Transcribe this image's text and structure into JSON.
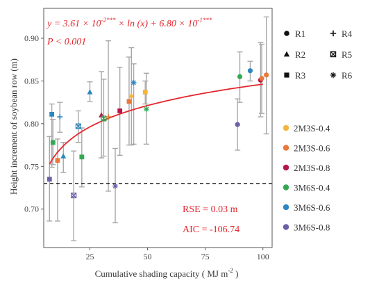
{
  "chart_data": {
    "type": "scatter",
    "xlabel": "Cumulative shading capacity ( MJ  m",
    "xlabel_sup": "-2",
    "xlabel_tail": " )",
    "ylabel": "Height increment of soybean row (m)",
    "xlim": [
      5,
      104
    ],
    "ylim": [
      0.655,
      0.935
    ],
    "xticks": [
      25,
      50,
      75,
      100
    ],
    "yticks": [
      0.7,
      0.75,
      0.8,
      0.85,
      0.9
    ],
    "xtick_labels": [
      "25",
      "50",
      "75",
      "100"
    ],
    "ytick_labels": [
      "0.70",
      "0.75",
      "0.80",
      "0.85",
      "0.90"
    ],
    "grid": false,
    "equation": {
      "lead": "y = 3.61 × 10",
      "exp1": "-2***",
      "mid": " × ln (x) + 6.80 × 10",
      "exp2": "-1***",
      "pvalue": "P < 0.001"
    },
    "fit": {
      "a": 0.0361,
      "b": 0.68,
      "x_from": 7.5,
      "x_to": 100,
      "color": "#e4262d"
    },
    "reference_line": {
      "y": 0.73,
      "style": "dashed",
      "color": "#000000"
    },
    "stats": {
      "rse": "RSE = 0.03 m",
      "aic": "AIC = -106.74"
    },
    "shape_legend": [
      {
        "label": "R1",
        "shape": "circle"
      },
      {
        "label": "R4",
        "shape": "plus"
      },
      {
        "label": "R2",
        "shape": "triangle"
      },
      {
        "label": "R5",
        "shape": "square-x"
      },
      {
        "label": "R3",
        "shape": "square"
      },
      {
        "label": "R6",
        "shape": "asterisk"
      }
    ],
    "color_legend": [
      {
        "label": "2M3S-0.4",
        "color": "#f5b43c"
      },
      {
        "label": "2M3S-0.6",
        "color": "#e8793a"
      },
      {
        "label": "2M3S-0.8",
        "color": "#b5174a"
      },
      {
        "label": "3M6S-0.4",
        "color": "#35a854"
      },
      {
        "label": "3M6S-0.6",
        "color": "#2e86c1"
      },
      {
        "label": "3M6S-0.8",
        "color": "#6c5fa8"
      }
    ],
    "points": [
      {
        "x": 7.5,
        "y": 0.735,
        "lo": 0.686,
        "hi": 0.785,
        "shape": "square",
        "color": "#6c5fa8"
      },
      {
        "x": 8.5,
        "y": 0.811,
        "lo": 0.749,
        "hi": 0.823,
        "shape": "square",
        "color": "#2e86c1"
      },
      {
        "x": 9,
        "y": 0.778,
        "lo": 0.752,
        "hi": 0.805,
        "shape": "square",
        "color": "#35a854"
      },
      {
        "x": 11,
        "y": 0.757,
        "lo": 0.686,
        "hi": 0.782,
        "shape": "square",
        "color": "#e8793a"
      },
      {
        "x": 12,
        "y": 0.808,
        "lo": 0.79,
        "hi": 0.825,
        "shape": "plus",
        "color": "#2e86c1"
      },
      {
        "x": 13.5,
        "y": 0.762,
        "lo": 0.743,
        "hi": 0.778,
        "shape": "triangle",
        "color": "#2e86c1"
      },
      {
        "x": 18,
        "y": 0.716,
        "lo": 0.663,
        "hi": 0.768,
        "shape": "square-x",
        "color": "#6c5fa8"
      },
      {
        "x": 20,
        "y": 0.797,
        "lo": 0.778,
        "hi": 0.815,
        "shape": "square-x",
        "color": "#2e86c1"
      },
      {
        "x": 21.5,
        "y": 0.761,
        "lo": 0.726,
        "hi": 0.795,
        "shape": "square",
        "color": "#35a854"
      },
      {
        "x": 25,
        "y": 0.837,
        "lo": 0.826,
        "hi": 0.849,
        "shape": "triangle",
        "color": "#2e86c1"
      },
      {
        "x": 30,
        "y": 0.81,
        "lo": 0.76,
        "hi": 0.861,
        "shape": "triangle",
        "color": "#b5174a"
      },
      {
        "x": 31,
        "y": 0.806,
        "lo": 0.762,
        "hi": 0.852,
        "shape": "square-x",
        "color": "#35a854"
      },
      {
        "x": 33,
        "y": 0.808,
        "lo": 0.721,
        "hi": 0.897,
        "shape": "plus",
        "color": "#e8793a"
      },
      {
        "x": 36,
        "y": 0.727,
        "lo": 0.684,
        "hi": 0.771,
        "shape": "asterisk",
        "color": "#6c5fa8"
      },
      {
        "x": 38,
        "y": 0.815,
        "lo": 0.763,
        "hi": 0.866,
        "shape": "square",
        "color": "#b5174a"
      },
      {
        "x": 42,
        "y": 0.826,
        "lo": 0.775,
        "hi": 0.878,
        "shape": "square",
        "color": "#e8793a"
      },
      {
        "x": 43,
        "y": 0.833,
        "lo": 0.775,
        "hi": 0.889,
        "shape": "triangle",
        "color": "#f5b43c"
      },
      {
        "x": 44,
        "y": 0.848,
        "lo": 0.776,
        "hi": 0.87,
        "shape": "asterisk",
        "color": "#2e86c1"
      },
      {
        "x": 49,
        "y": 0.837,
        "lo": 0.823,
        "hi": 0.85,
        "shape": "square",
        "color": "#f5b43c"
      },
      {
        "x": 49.5,
        "y": 0.817,
        "lo": 0.776,
        "hi": 0.859,
        "shape": "asterisk",
        "color": "#35a854"
      },
      {
        "x": 89,
        "y": 0.799,
        "lo": 0.769,
        "hi": 0.829,
        "shape": "circle",
        "color": "#6c5fa8"
      },
      {
        "x": 90,
        "y": 0.855,
        "lo": 0.825,
        "hi": 0.884,
        "shape": "circle",
        "color": "#35a854"
      },
      {
        "x": 94.5,
        "y": 0.862,
        "lo": 0.85,
        "hi": 0.873,
        "shape": "circle",
        "color": "#2e86c1"
      },
      {
        "x": 99,
        "y": 0.851,
        "lo": 0.808,
        "hi": 0.895,
        "shape": "circle",
        "color": "#b5174a"
      },
      {
        "x": 99.5,
        "y": 0.853,
        "lo": 0.812,
        "hi": 0.893,
        "shape": "circle",
        "color": "#e8793a"
      },
      {
        "x": 101.5,
        "y": 0.857,
        "lo": 0.788,
        "hi": 0.925,
        "shape": "circle",
        "color": "#e8793a"
      }
    ]
  }
}
